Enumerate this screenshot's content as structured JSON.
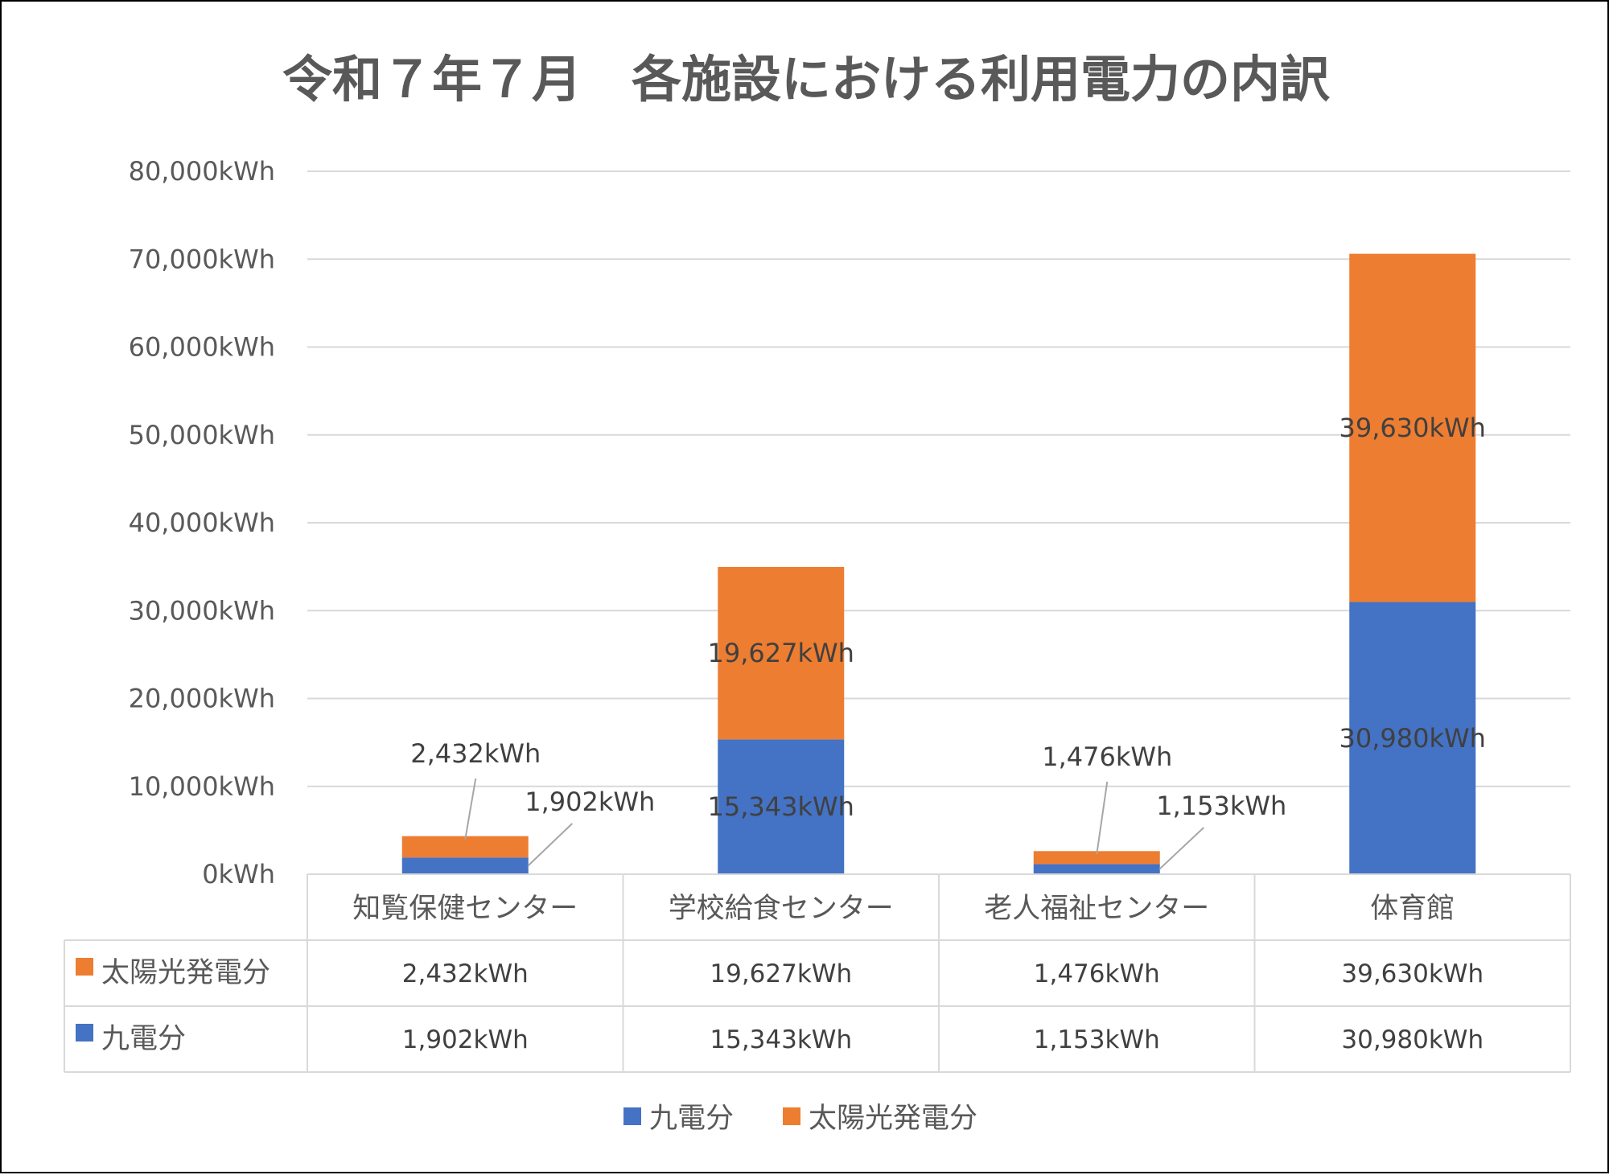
{
  "chart_data": {
    "type": "bar",
    "stacked": true,
    "title": "令和７年７月　各施設における利用電力の内訳",
    "categories": [
      "知覧保健センター",
      "学校給食センター",
      "老人福祉センター",
      "体育館"
    ],
    "series": [
      {
        "name": "九電分",
        "color": "#4472C4",
        "values": [
          1902,
          15343,
          1153,
          30980
        ],
        "labels": [
          "1,902kWh",
          "15,343kWh",
          "1,153kWh",
          "30,980kWh"
        ]
      },
      {
        "name": "太陽光発電分",
        "color": "#ED7D31",
        "values": [
          2432,
          19627,
          1476,
          39630
        ],
        "labels": [
          "2,432kWh",
          "19,627kWh",
          "1,476kWh",
          "39,630kWh"
        ]
      }
    ],
    "ylim": [
      0,
      80000
    ],
    "yticks": [
      0,
      10000,
      20000,
      30000,
      40000,
      50000,
      60000,
      70000,
      80000
    ],
    "ytick_labels": [
      "0kWh",
      "10,000kWh",
      "20,000kWh",
      "30,000kWh",
      "40,000kWh",
      "50,000kWh",
      "60,000kWh",
      "70,000kWh",
      "80,000kWh"
    ],
    "grid": true,
    "data_table": true,
    "legend_position": "bottom"
  }
}
